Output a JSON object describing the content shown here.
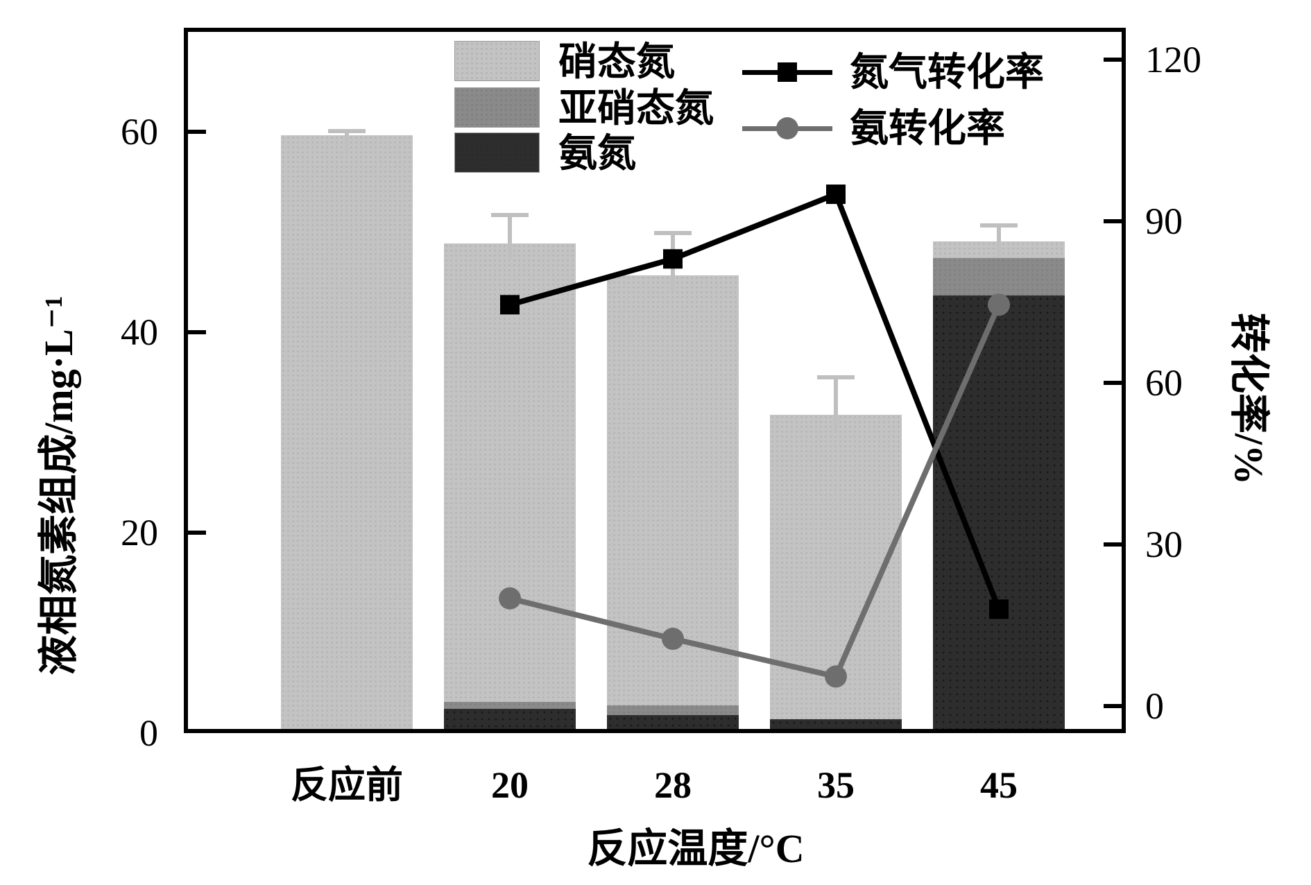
{
  "figure": {
    "background": "#ffffff"
  },
  "x_axis": {
    "label": "反应温度/°C",
    "categories": [
      "反应前",
      "20",
      "28",
      "35",
      "45"
    ]
  },
  "left_axis": {
    "label": "液相氮素组成/mg·L⁻¹",
    "tick_labels": [
      "0",
      "20",
      "40",
      "60"
    ],
    "tick_values": [
      0,
      20,
      40,
      60
    ],
    "range": [
      0,
      70.4
    ]
  },
  "right_axis": {
    "label": "转化率/%",
    "tick_labels": [
      "0",
      "30",
      "60",
      "90",
      "120"
    ],
    "tick_values": [
      0,
      30,
      60,
      90,
      120
    ],
    "range": [
      -5,
      125.9
    ]
  },
  "legend": {
    "items": [
      {
        "label": "硝态氮",
        "type": "patch",
        "color": "#c3c3c3"
      },
      {
        "label": "亚硝态氮",
        "type": "patch",
        "color": "#8a8a8a"
      },
      {
        "label": "氨氮",
        "type": "patch",
        "color": "#2d2d2d"
      },
      {
        "label": "氮气转化率",
        "type": "line",
        "color": "#000000",
        "marker": "square"
      },
      {
        "label": "氨转化率",
        "type": "line",
        "color": "#6e6e6e",
        "marker": "circle"
      }
    ]
  },
  "chart_data": {
    "type": "bar",
    "subtype": "stacked-bars-with-overlaid-lines",
    "title": "",
    "xlabel": "反应温度/°C",
    "ylabel_left": "液相氮素组成/mg·L⁻¹",
    "ylabel_right": "转化率/%",
    "ylim_left": [
      0,
      70.4
    ],
    "ylim_right": [
      -5,
      125.9
    ],
    "grid": false,
    "legend_position": "upper-center-inside",
    "categories": [
      "反应前",
      "20",
      "28",
      "35",
      "45"
    ],
    "bar_series": [
      {
        "name": "氨氮",
        "color": "#2d2d2d",
        "values": [
          0,
          2.4,
          1.8,
          1.4,
          43.7
        ]
      },
      {
        "name": "亚硝态氮",
        "color": "#8a8a8a",
        "values": [
          0,
          0.7,
          1.0,
          0,
          3.7
        ]
      },
      {
        "name": "硝态氮",
        "color": "#c3c3c3",
        "values": [
          59.7,
          45.8,
          42.9,
          30.4,
          1.7
        ]
      }
    ],
    "bar_totals": [
      59.7,
      48.9,
      45.7,
      31.8,
      49.1
    ],
    "error_plus": [
      0.4,
      2.8,
      4.2,
      3.7,
      1.6
    ],
    "line_series": [
      {
        "name": "氮气转化率",
        "axis": "right",
        "color": "#000000",
        "marker": "square",
        "values": [
          null,
          74.5,
          83,
          95,
          18
        ]
      },
      {
        "name": "氨转化率",
        "axis": "right",
        "color": "#6e6e6e",
        "marker": "circle",
        "values": [
          null,
          20,
          12.5,
          5.5,
          74.5
        ]
      }
    ]
  }
}
